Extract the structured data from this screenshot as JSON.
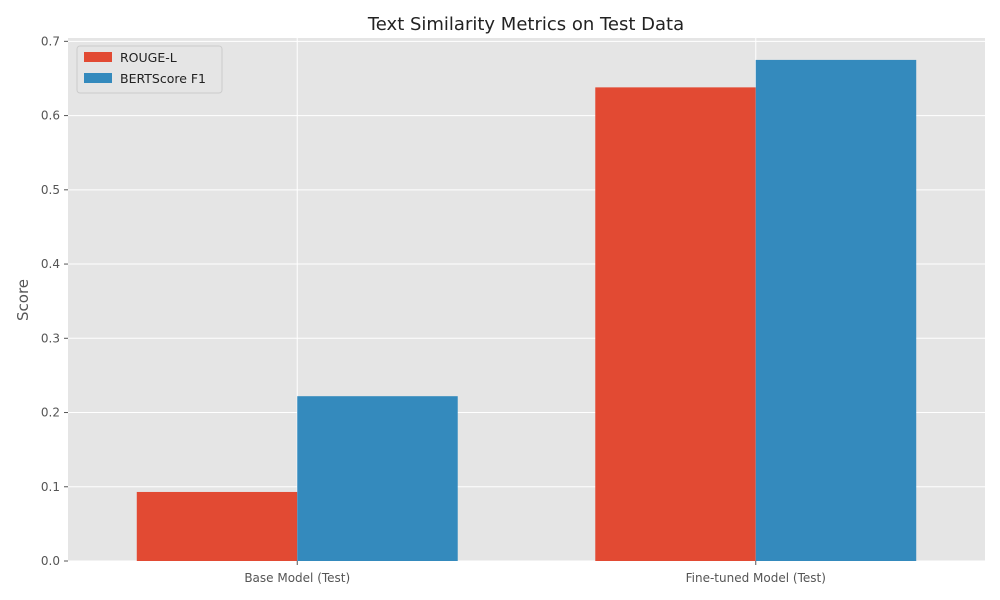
{
  "chart_data": {
    "type": "bar",
    "title": "Text Similarity Metrics on Test Data",
    "xlabel": "",
    "ylabel": "Score",
    "categories": [
      "Base Model (Test)",
      "Fine-tuned Model (Test)"
    ],
    "series": [
      {
        "name": "ROUGE-L",
        "color": "#E24A33",
        "values": [
          0.093,
          0.638
        ]
      },
      {
        "name": "BERTScore F1",
        "color": "#348ABD",
        "values": [
          0.222,
          0.675
        ]
      }
    ],
    "ylim": [
      0,
      0.7045
    ],
    "yticks": [
      0.0,
      0.1,
      0.2,
      0.3,
      0.4,
      0.5,
      0.6,
      0.7
    ],
    "ytick_labels": [
      "0.0",
      "0.1",
      "0.2",
      "0.3",
      "0.4",
      "0.5",
      "0.6",
      "0.7"
    ],
    "grid": true,
    "legend_position": "top-left",
    "background_color": "#E5E5E5",
    "grid_color": "#FFFFFF"
  }
}
